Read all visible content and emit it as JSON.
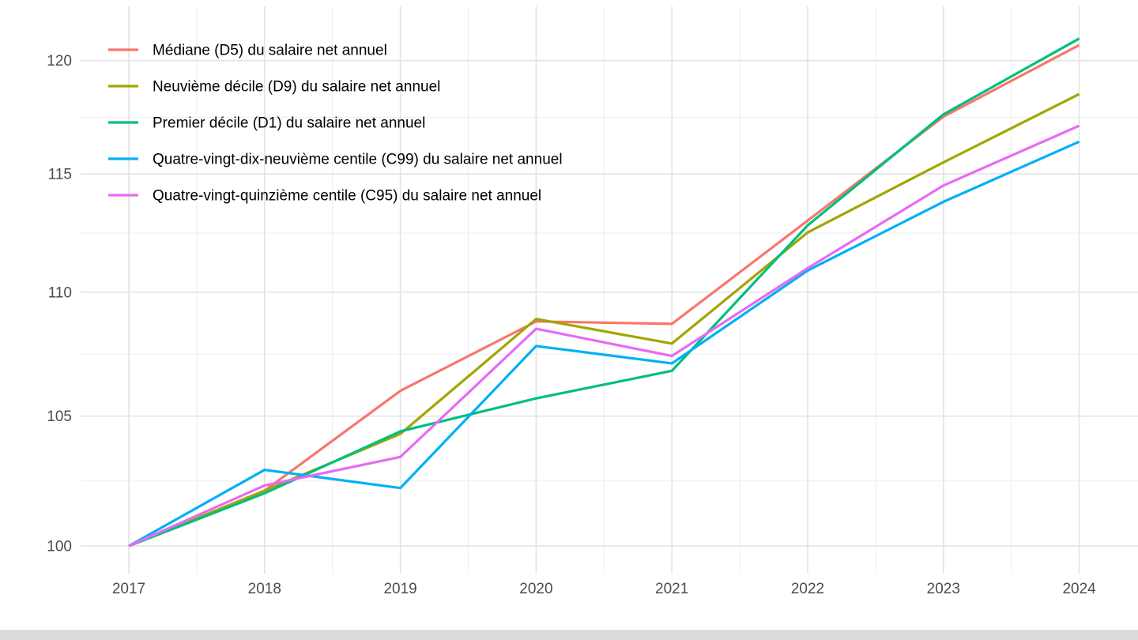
{
  "page": {
    "background_color": "#ffffff",
    "bottom_strip_color": "#dcdcdc"
  },
  "chart_data": {
    "type": "line",
    "title": "",
    "xlabel": "",
    "ylabel": "",
    "y_scale": "log",
    "ylim": [
      99.0,
      122.4
    ],
    "grid": true,
    "legend_position": "inside-top-left",
    "axis_text_color": "#4d4d4d",
    "legend_text_color": "#000000",
    "grid_major_color": "#e3e3e3",
    "grid_minor_color": "#ededed",
    "x": [
      2017,
      2018,
      2019,
      2020,
      2021,
      2022,
      2023,
      2024
    ],
    "x_ticks": [
      "2017",
      "2018",
      "2019",
      "2020",
      "2021",
      "2022",
      "2023",
      "2024"
    ],
    "y_ticks": [
      100,
      105,
      110,
      115,
      120
    ],
    "y_tick_labels": [
      "100",
      "105",
      "110",
      "115",
      "120"
    ],
    "series": [
      {
        "name": "Médiane (D5) du salaire net annuel",
        "color": "#F8766D",
        "values": [
          100,
          102.1,
          106.0,
          108.8,
          108.7,
          113.0,
          117.5,
          120.7
        ]
      },
      {
        "name": "Neuvième décile (D9) du salaire net annuel",
        "color": "#A3A500",
        "values": [
          100,
          102.1,
          104.3,
          108.9,
          107.9,
          112.5,
          115.5,
          118.5
        ]
      },
      {
        "name": "Premier décile (D1) du salaire net annuel",
        "color": "#00BF7D",
        "values": [
          100,
          102.0,
          104.4,
          105.7,
          106.8,
          112.8,
          117.6,
          121.0
        ]
      },
      {
        "name": "Quatre-vingt-dix-neuvième centile (C99) du salaire net annuel",
        "color": "#00B0F6",
        "values": [
          100,
          102.9,
          102.2,
          107.8,
          107.1,
          110.9,
          113.8,
          116.4
        ]
      },
      {
        "name": "Quatre-vingt-quinzième centile (C95) du salaire net annuel",
        "color": "#E76BF3",
        "values": [
          100,
          102.3,
          103.4,
          108.5,
          107.4,
          111.0,
          114.5,
          117.1
        ]
      }
    ]
  }
}
